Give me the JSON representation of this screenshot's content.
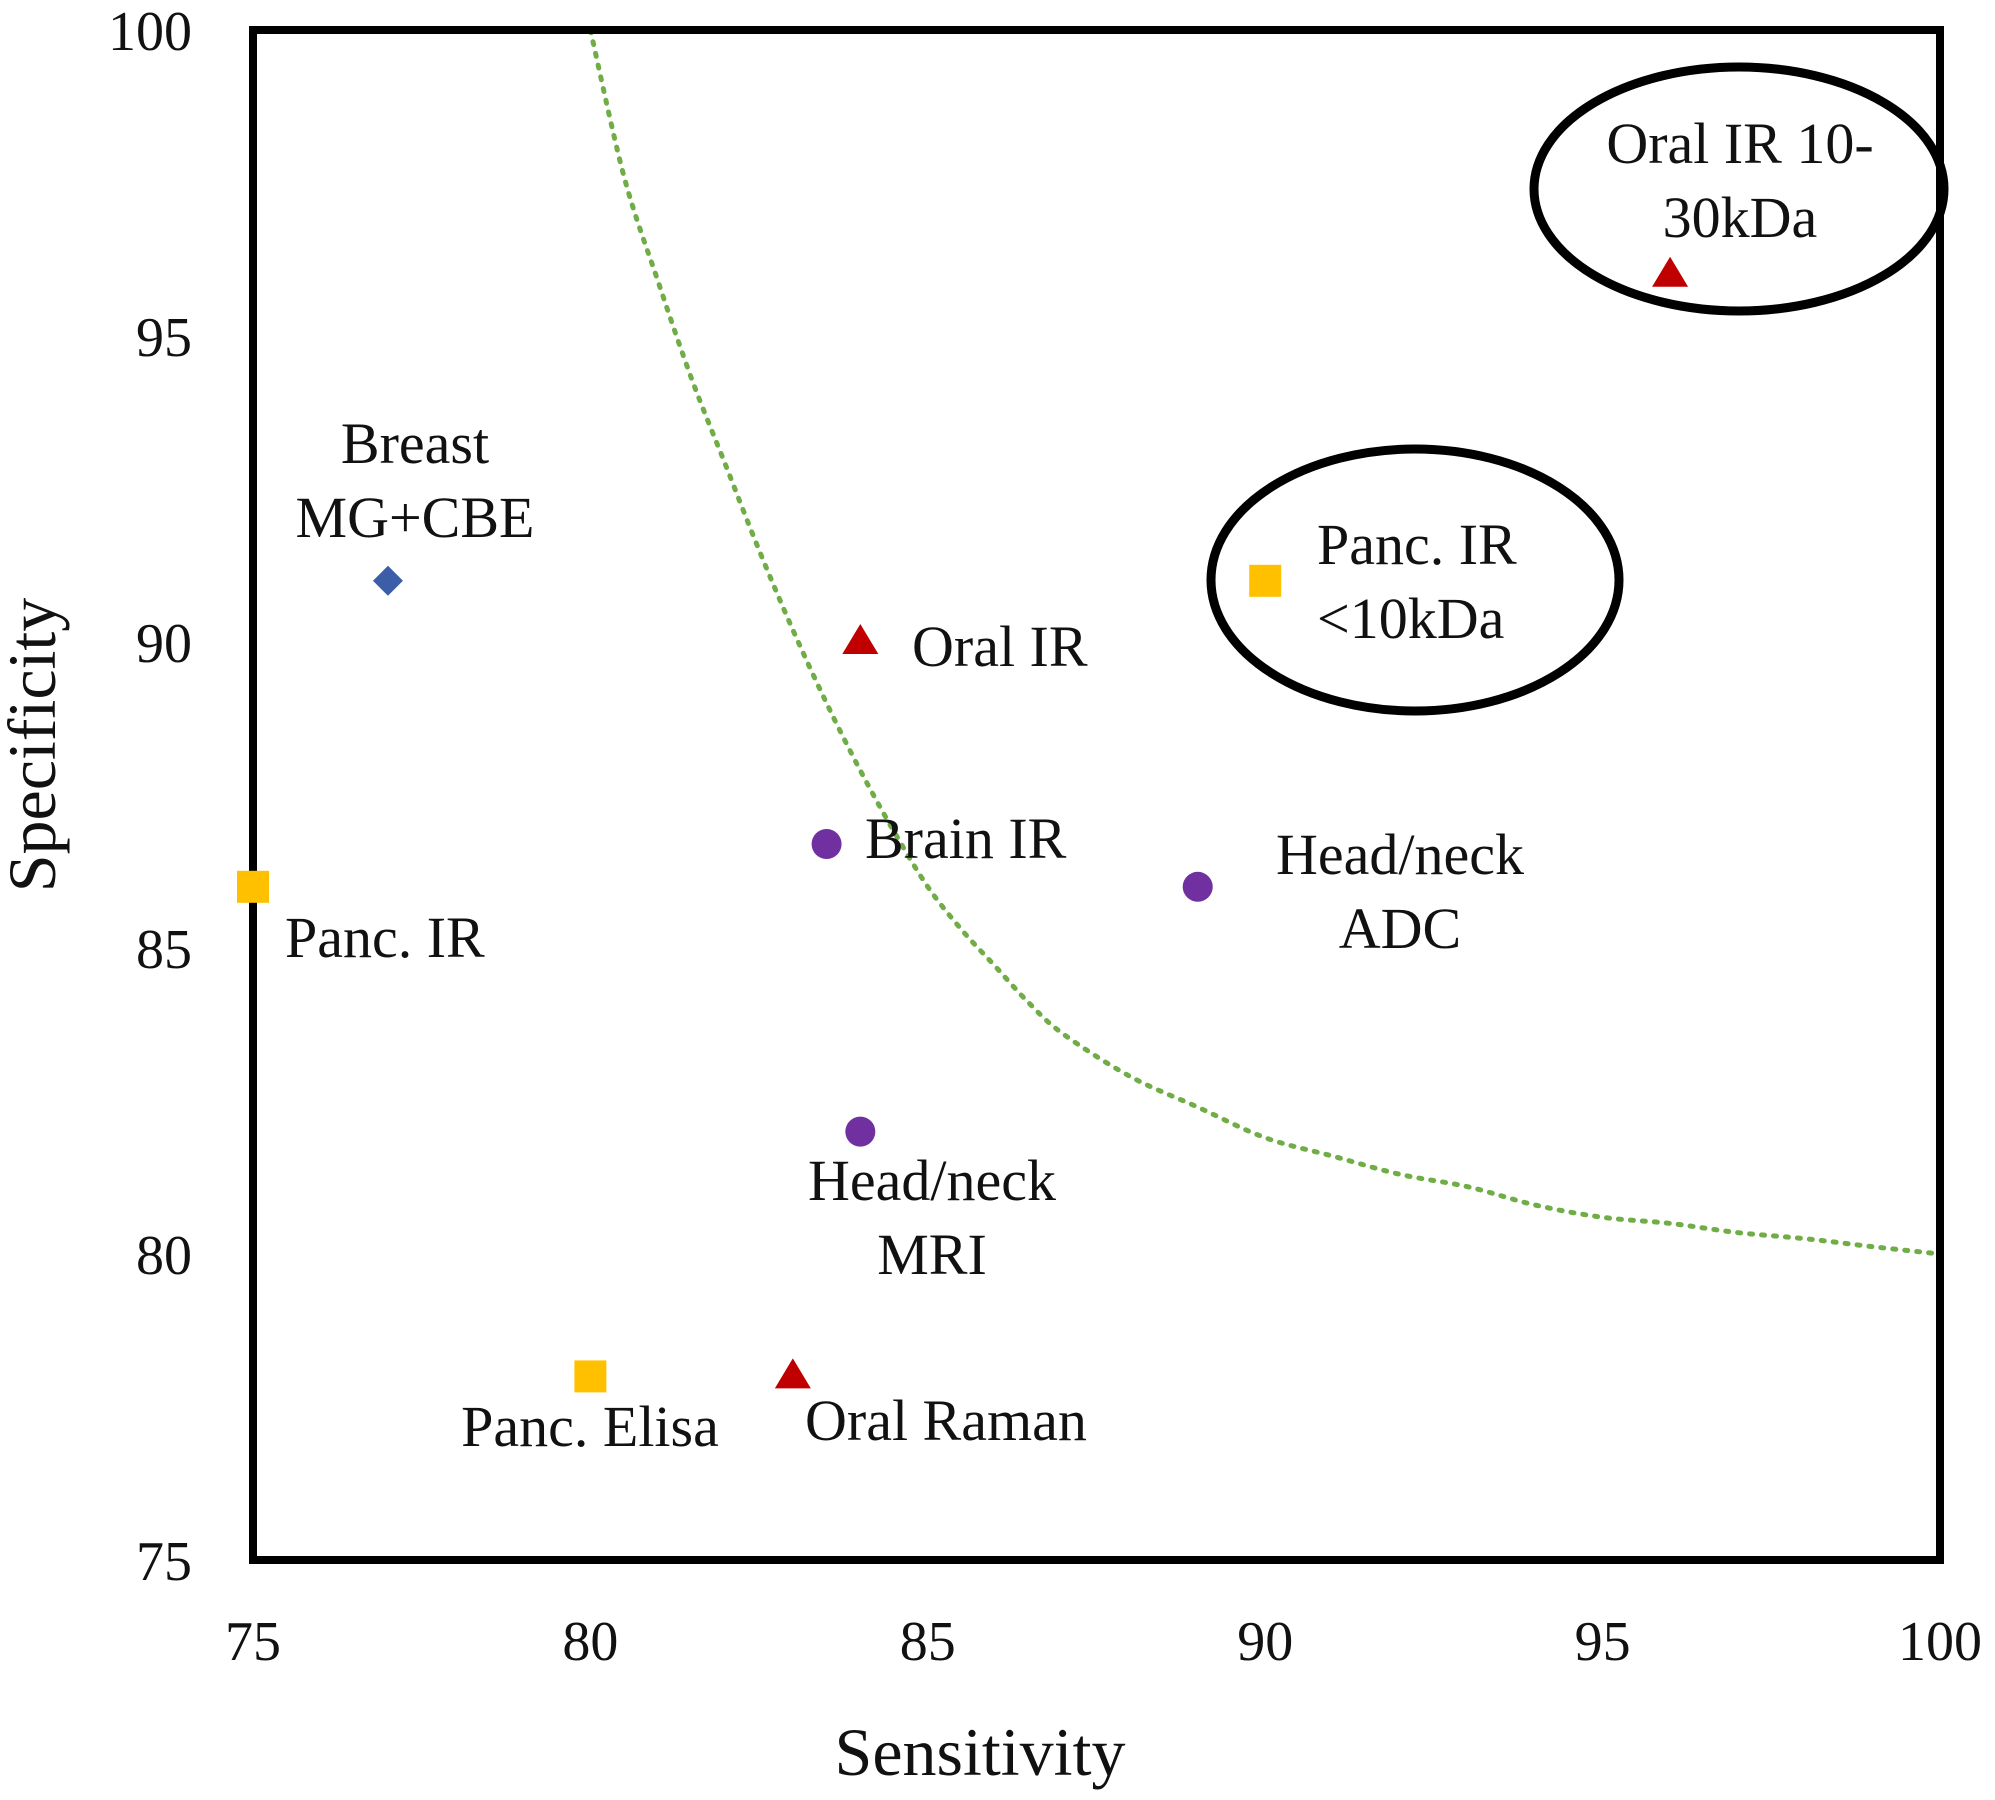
{
  "chart_data": {
    "type": "scatter",
    "title": "",
    "xlabel": "Sensitivity",
    "ylabel": "Specificity",
    "xlim": [
      75,
      100
    ],
    "ylim": [
      75,
      100
    ],
    "xticks": [
      "75",
      "80",
      "85",
      "90",
      "95",
      "100"
    ],
    "yticks": [
      "75",
      "80",
      "85",
      "90",
      "95",
      "100"
    ],
    "grid": false,
    "legend": "none",
    "colors": {
      "diamond": "#3c5ea9",
      "square": "#ffc000",
      "triangle": "#c00000",
      "circle": "#7030a0",
      "curve": "#70ad47",
      "frame": "#000000"
    },
    "curve": {
      "style": "dotted",
      "x": [
        80,
        80.5,
        81,
        81.5,
        82,
        82.5,
        83,
        83.5,
        84,
        84.5,
        85,
        85.5,
        86,
        86.5,
        87,
        88,
        89,
        90,
        91,
        92,
        93,
        94,
        95,
        96,
        97,
        98,
        99,
        100
      ],
      "y": [
        100,
        97.6,
        95.9,
        94.3,
        92.9,
        91.5,
        90.2,
        89.0,
        87.9,
        86.9,
        86.0,
        85.3,
        84.7,
        84.1,
        83.6,
        82.9,
        82.4,
        81.9,
        81.6,
        81.3,
        81.1,
        80.8,
        80.6,
        80.5,
        80.35,
        80.25,
        80.12,
        80.0
      ]
    },
    "points": [
      {
        "label": "Breast MG+CBE",
        "lines": [
          "Breast",
          "MG+CBE"
        ],
        "x": 77,
        "y": 91,
        "marker": "diamond"
      },
      {
        "label": "Panc. IR",
        "lines": [
          "Panc. IR"
        ],
        "x": 75,
        "y": 86,
        "marker": "square"
      },
      {
        "label": "Panc. Elisa",
        "lines": [
          "Panc. Elisa"
        ],
        "x": 80,
        "y": 78,
        "marker": "square"
      },
      {
        "label": "Oral Raman",
        "lines": [
          "Oral Raman"
        ],
        "x": 83,
        "y": 78,
        "marker": "triangle"
      },
      {
        "label": "Head/neck MRI",
        "lines": [
          "Head/neck",
          "MRI"
        ],
        "x": 84,
        "y": 82,
        "marker": "circle"
      },
      {
        "label": "Brain IR",
        "lines": [
          "Brain IR"
        ],
        "x": 83.5,
        "y": 86.7,
        "marker": "circle"
      },
      {
        "label": "Oral IR",
        "lines": [
          "Oral IR"
        ],
        "x": 84,
        "y": 90,
        "marker": "triangle"
      },
      {
        "label": "Head/neck ADC",
        "lines": [
          "Head/neck",
          "ADC"
        ],
        "x": 89,
        "y": 86,
        "marker": "circle"
      },
      {
        "label": "Panc. IR <10kDa",
        "lines": [
          "Panc. IR",
          "<10kDa"
        ],
        "x": 90,
        "y": 91,
        "marker": "square",
        "highlighted": true
      },
      {
        "label": "Oral IR 10-30kDa",
        "lines": [
          "Oral IR 10-",
          "30kDa"
        ],
        "x": 96,
        "y": 96,
        "marker": "triangle",
        "highlighted": true
      }
    ]
  }
}
